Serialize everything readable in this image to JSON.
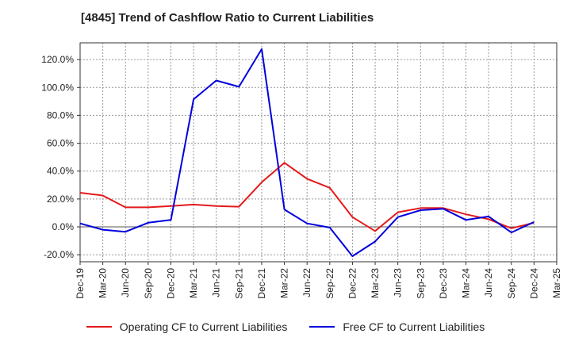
{
  "chart_data": {
    "type": "line",
    "title": "[4845]  Trend of Cashflow Ratio to Current Liabilities",
    "xlabel": "",
    "ylabel": "",
    "categories": [
      "Dec-19",
      "Mar-20",
      "Jun-20",
      "Sep-20",
      "Dec-20",
      "Mar-21",
      "Jun-21",
      "Sep-21",
      "Dec-21",
      "Mar-22",
      "Jun-22",
      "Sep-22",
      "Dec-22",
      "Mar-23",
      "Jun-23",
      "Sep-23",
      "Dec-23",
      "Mar-24",
      "Jun-24",
      "Sep-24",
      "Dec-24",
      "Mar-25"
    ],
    "ylim": [
      -25,
      132
    ],
    "yticks": [
      -20,
      0,
      20,
      40,
      60,
      80,
      100,
      120
    ],
    "ytick_labels": [
      "-20.0%",
      "0.0%",
      "20.0%",
      "40.0%",
      "60.0%",
      "80.0%",
      "100.0%",
      "120.0%"
    ],
    "grid": true,
    "legend_position": "bottom",
    "series": [
      {
        "name": "Operating CF to Current Liabilities",
        "color": "#e41a1c",
        "values": [
          24.5,
          22.5,
          14,
          14,
          15,
          16,
          15,
          14.5,
          32,
          46,
          34.5,
          28,
          7,
          -3,
          10.5,
          13.5,
          13.5,
          9,
          5.5,
          -1,
          3,
          null
        ]
      },
      {
        "name": "Free CF to Current Liabilities",
        "color": "#0000dd",
        "values": [
          2.5,
          -2,
          -3.5,
          3,
          5,
          91.5,
          105,
          100.5,
          127.5,
          12.5,
          2.5,
          -0.5,
          -21,
          -10.5,
          7,
          12,
          13,
          5,
          7.5,
          -4,
          3.5,
          null
        ]
      }
    ]
  }
}
